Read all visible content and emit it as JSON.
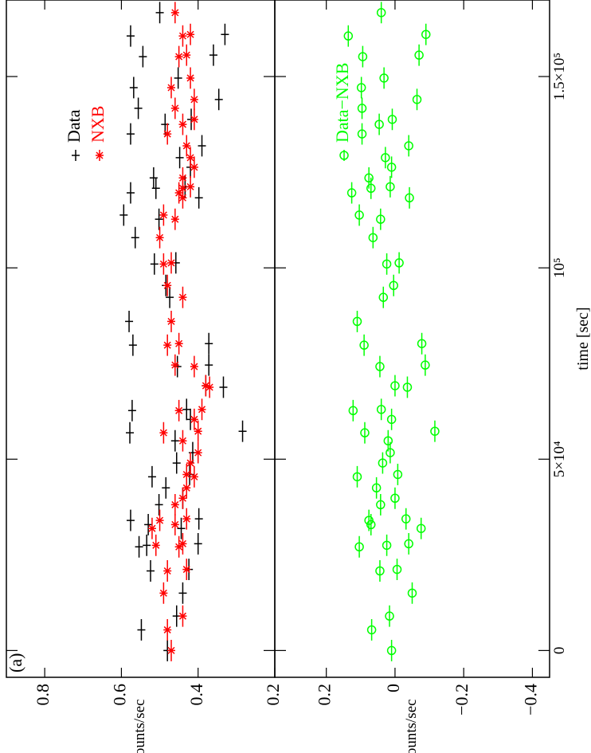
{
  "chart_data": [
    {
      "type": "errorbar",
      "ylabel": "counts/sec",
      "annotation": "(a)",
      "legend": "upper right",
      "xlim": [
        -7000,
        170000
      ],
      "ylim": [
        0.2,
        0.9
      ],
      "yticks": [
        0.2,
        0.4,
        0.6,
        0.8
      ],
      "x_error": 2800,
      "x": [
        0,
        5400,
        9000,
        15000,
        20800,
        21200,
        27100,
        27500,
        27900,
        31900,
        32900,
        34000,
        34400,
        38100,
        39800,
        42500,
        45400,
        46000,
        49000,
        51700,
        54800,
        56900,
        57300,
        60400,
        62700,
        63000,
        68800,
        69200,
        74200,
        74600,
        79800,
        80200,
        86000,
        92300,
        95400,
        101000,
        101300,
        107900,
        112700,
        113800,
        118300,
        119600,
        120800,
        121200,
        123500,
        126300,
        128800,
        131900,
        135000,
        137500,
        138800,
        141700,
        144000,
        147100,
        149600,
        155200,
        155600,
        160600,
        161000,
        166700
      ],
      "series": [
        {
          "name": "Data",
          "color": "#000000",
          "marker": "+",
          "values": [
            0.48,
            0.548,
            0.456,
            0.44,
            0.524,
            0.424,
            0.554,
            0.534,
            0.4,
            0.444,
            0.53,
            0.576,
            0.398,
            0.502,
            0.44,
            0.484,
            0.52,
            0.422,
            0.456,
            0.414,
            0.46,
            0.578,
            0.284,
            0.42,
            0.572,
            0.43,
            0.334,
            0.38,
            0.454,
            0.372,
            0.57,
            0.372,
            0.58,
            0.474,
            0.484,
            0.514,
            0.458,
            0.564,
            0.502,
            0.594,
            0.398,
            0.576,
            0.51,
            0.434,
            0.516,
            0.42,
            0.448,
            0.39,
            0.576,
            0.486,
            0.418,
            0.556,
            0.346,
            0.568,
            0.452,
            0.544,
            0.36,
            0.576,
            0.33,
            0.5
          ]
        },
        {
          "name": "NXB",
          "color": "#ff0000",
          "marker": "*",
          "values": [
            0.47,
            0.48,
            0.44,
            0.49,
            0.48,
            0.43,
            0.45,
            0.51,
            0.44,
            0.52,
            0.46,
            0.5,
            0.43,
            0.46,
            0.44,
            0.43,
            0.41,
            0.43,
            0.42,
            0.4,
            0.44,
            0.49,
            0.4,
            0.41,
            0.45,
            0.39,
            0.37,
            0.38,
            0.41,
            0.46,
            0.48,
            0.45,
            0.47,
            0.44,
            0.48,
            0.49,
            0.47,
            0.5,
            0.46,
            0.49,
            0.44,
            0.45,
            0.44,
            0.42,
            0.44,
            0.41,
            0.42,
            0.43,
            0.48,
            0.44,
            0.41,
            0.46,
            0.41,
            0.47,
            0.42,
            0.45,
            0.43,
            0.44,
            0.42,
            0.46
          ]
        }
      ]
    },
    {
      "type": "errorbar",
      "ylabel": "counts/sec",
      "xlabel": "time [sec]",
      "legend": "upper right",
      "xlim": [
        -7000,
        170000
      ],
      "ylim": [
        -0.45,
        0.35
      ],
      "yticks": [
        {
          "value": -0.4,
          "label": "−0.4"
        },
        {
          "value": -0.2,
          "label": "−0.2"
        },
        0,
        0.2
      ],
      "xticks": [
        0,
        {
          "value": 50000,
          "label": "5×10⁴"
        },
        {
          "value": 100000,
          "label": "10⁵"
        },
        {
          "value": 150000,
          "label": "1.5×10⁵"
        }
      ],
      "x_error": 2800,
      "x": [
        0,
        5400,
        9000,
        15000,
        20800,
        21200,
        27100,
        27500,
        27900,
        31900,
        32900,
        34000,
        34400,
        38100,
        39800,
        42500,
        45400,
        46000,
        49000,
        51700,
        54800,
        56900,
        57300,
        60400,
        62700,
        63000,
        68800,
        69200,
        74200,
        74600,
        79800,
        80200,
        86000,
        92300,
        95400,
        101000,
        101300,
        107900,
        112700,
        113800,
        118300,
        119600,
        120800,
        121200,
        123500,
        126300,
        128800,
        131900,
        135000,
        137500,
        138800,
        141700,
        144000,
        147100,
        149600,
        155200,
        155600,
        160600,
        161000,
        166700
      ],
      "series": [
        {
          "name": "Data−NXB",
          "color": "#00ff00",
          "marker": "o",
          "values": [
            0.01,
            0.068,
            0.016,
            -0.05,
            0.044,
            -0.006,
            0.104,
            0.024,
            -0.04,
            -0.076,
            0.07,
            0.076,
            -0.032,
            0.042,
            0,
            0.054,
            0.11,
            -0.008,
            0.036,
            0.014,
            0.02,
            0.088,
            -0.116,
            0.01,
            0.122,
            0.04,
            -0.036,
            0,
            0.044,
            -0.088,
            0.09,
            -0.078,
            0.11,
            0.034,
            0.004,
            0.024,
            -0.012,
            0.064,
            0.042,
            0.104,
            -0.042,
            0.126,
            0.07,
            0.014,
            0.076,
            0.01,
            0.028,
            -0.04,
            0.096,
            0.046,
            0.008,
            0.096,
            -0.064,
            0.098,
            0.032,
            0.094,
            -0.07,
            0.136,
            -0.09,
            0.04
          ]
        }
      ]
    }
  ]
}
